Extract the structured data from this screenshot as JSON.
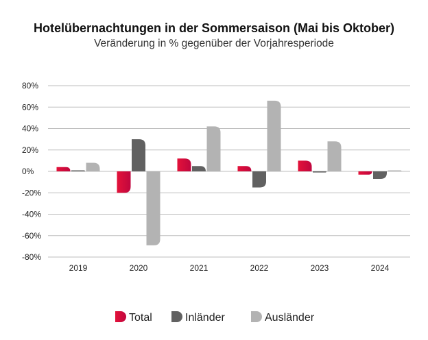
{
  "chart_data": {
    "type": "bar",
    "title": "Hotelübernachtungen in der Sommersaison (Mai bis Oktober)",
    "subtitle": "Veränderung in % gegenüber der Vorjahresperiode",
    "xlabel": "",
    "ylabel": "",
    "categories": [
      "2019",
      "2020",
      "2021",
      "2022",
      "2023",
      "2024"
    ],
    "ylim": [
      -80,
      80
    ],
    "yticks": [
      80,
      60,
      40,
      20,
      0,
      -20,
      -40,
      -60,
      -80
    ],
    "ytick_labels": [
      "80%",
      "60%",
      "40%",
      "20%",
      "0%",
      "-20%",
      "-40%",
      "-60%",
      "-80%"
    ],
    "grid": true,
    "legend_position": "bottom",
    "series": [
      {
        "name": "Total",
        "color": "#e3123a",
        "values": [
          4,
          -20,
          12,
          5,
          10,
          -3
        ]
      },
      {
        "name": "Inländer",
        "color": "#616161",
        "values": [
          1,
          30,
          5,
          -15,
          -1,
          -7
        ]
      },
      {
        "name": "Ausländer",
        "color": "#b3b3b3",
        "values": [
          8,
          -69,
          42,
          66,
          28,
          1
        ]
      }
    ]
  }
}
